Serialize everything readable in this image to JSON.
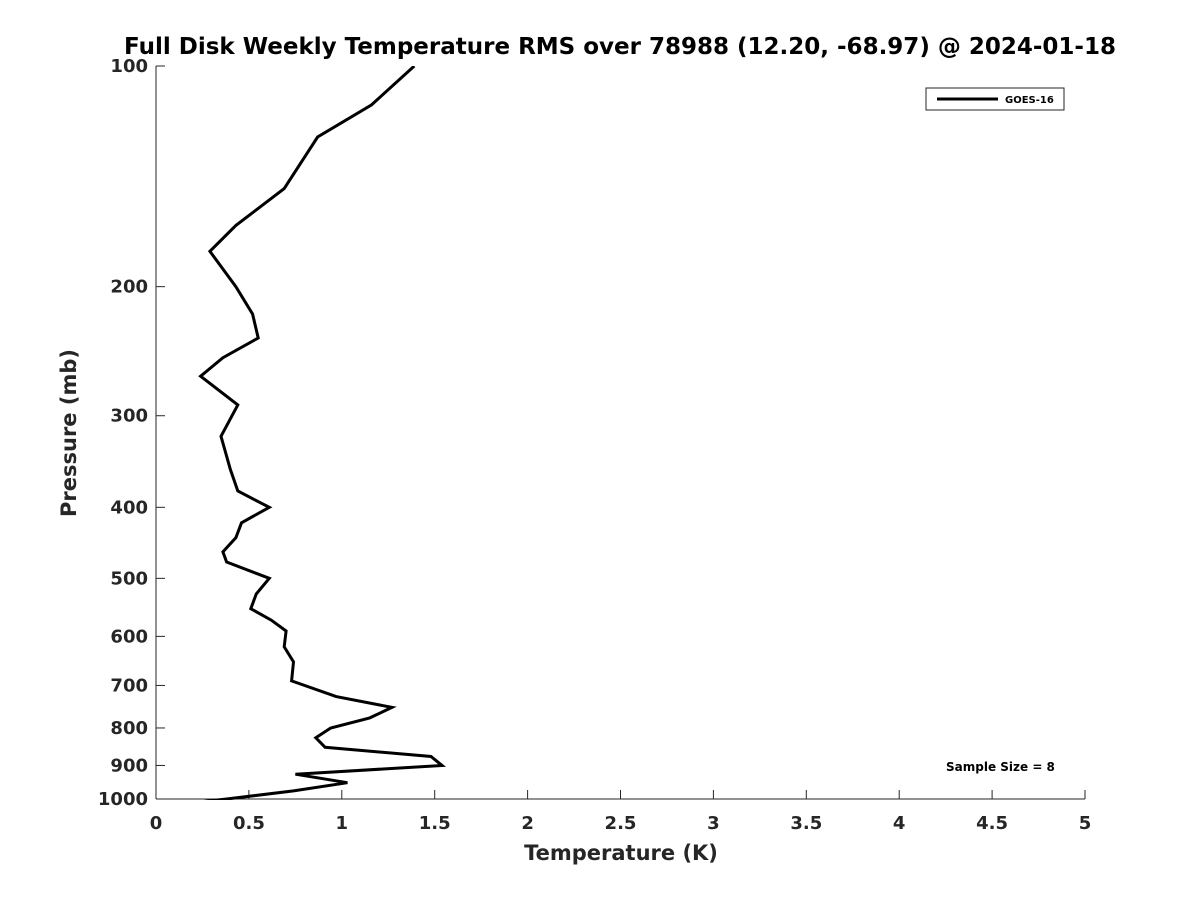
{
  "chart_data": {
    "type": "line",
    "title": "Full Disk Weekly Temperature RMS over 78988 (12.20, -68.97) @ 2024-01-18",
    "xlabel": "Temperature (K)",
    "ylabel": "Pressure (mb)",
    "xlim": [
      0,
      5
    ],
    "ylim": [
      100,
      1000
    ],
    "y_scale": "log",
    "y_reversed": true,
    "x_ticks": [
      "0",
      "0.5",
      "1",
      "1.5",
      "2",
      "2.5",
      "3",
      "3.5",
      "4",
      "4.5",
      "5"
    ],
    "y_ticks": [
      "100",
      "200",
      "300",
      "400",
      "500",
      "600",
      "700",
      "800",
      "900",
      "1000"
    ],
    "grid": false,
    "legend_position": "top-right",
    "annotation": "Sample Size = 8",
    "series": [
      {
        "name": "GOES-16",
        "color": "#000000",
        "points": [
          [
            1.39,
            100
          ],
          [
            1.16,
            113
          ],
          [
            0.87,
            125
          ],
          [
            0.69,
            147
          ],
          [
            0.43,
            165
          ],
          [
            0.29,
            179
          ],
          [
            0.43,
            200
          ],
          [
            0.52,
            218
          ],
          [
            0.55,
            235
          ],
          [
            0.36,
            250
          ],
          [
            0.24,
            265
          ],
          [
            0.44,
            290
          ],
          [
            0.35,
            320
          ],
          [
            0.4,
            355
          ],
          [
            0.44,
            380
          ],
          [
            0.61,
            400
          ],
          [
            0.46,
            420
          ],
          [
            0.43,
            440
          ],
          [
            0.36,
            460
          ],
          [
            0.38,
            475
          ],
          [
            0.61,
            500
          ],
          [
            0.54,
            525
          ],
          [
            0.51,
            550
          ],
          [
            0.62,
            570
          ],
          [
            0.7,
            590
          ],
          [
            0.69,
            620
          ],
          [
            0.74,
            650
          ],
          [
            0.73,
            690
          ],
          [
            0.97,
            725
          ],
          [
            1.27,
            750
          ],
          [
            1.15,
            775
          ],
          [
            0.94,
            800
          ],
          [
            0.86,
            825
          ],
          [
            0.91,
            850
          ],
          [
            1.48,
            875
          ],
          [
            1.54,
            900
          ],
          [
            0.75,
            925
          ],
          [
            1.03,
            950
          ],
          [
            0.74,
            975
          ],
          [
            0.38,
            1000
          ],
          [
            0.22,
            1010
          ],
          [
            0.5,
            1020
          ],
          [
            1.02,
            1030
          ]
        ]
      }
    ]
  }
}
